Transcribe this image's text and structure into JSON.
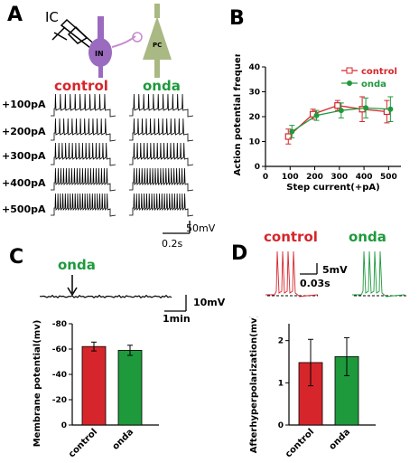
{
  "panels": {
    "A": {
      "letter": "A",
      "ic_label": "IC",
      "in_label": "IN",
      "pc_label": "PC",
      "control_label": "control",
      "onda_label": "onda",
      "steps": [
        "+100pA",
        "+200pA",
        "+300pA",
        "+400pA",
        "+500pA"
      ],
      "scale_v": "50mV",
      "scale_t": "0.2s"
    },
    "C": {
      "letter": "C",
      "onda_label": "onda",
      "scale_v": "10mV",
      "scale_t": "1min"
    },
    "D": {
      "letter": "D",
      "control_label": "control",
      "onda_label": "onda",
      "scale_v": "5mV",
      "scale_t": "0.03s"
    }
  },
  "colors": {
    "control": "#d6262b",
    "onda": "#1e9a3c",
    "interneuron": "#9b6bbf",
    "pyramidal": "#aab883"
  },
  "chart_data": [
    {
      "id": "B",
      "letter": "B",
      "type": "line",
      "xlabel": "Step current(+pA)",
      "ylabel": "Action potential frequency",
      "x": [
        100,
        200,
        300,
        400,
        500
      ],
      "xlim": [
        0,
        550
      ],
      "xticks": [
        0,
        100,
        200,
        300,
        400,
        500
      ],
      "ylim": [
        0,
        40
      ],
      "yticks": [
        0,
        10,
        20,
        30,
        40
      ],
      "legend_position": "top-right",
      "series": [
        {
          "name": "control",
          "values": [
            12,
            21,
            24.5,
            23,
            22
          ],
          "errors": [
            3,
            2,
            2,
            5,
            4.5
          ],
          "color": "#d6262b",
          "marker": "open-square"
        },
        {
          "name": "onda",
          "values": [
            14,
            20.5,
            22.5,
            23.5,
            23
          ],
          "errors": [
            2.5,
            2,
            3,
            4,
            5
          ],
          "color": "#1e9a3c",
          "marker": "filled-circle"
        }
      ]
    },
    {
      "id": "C",
      "type": "bar",
      "ylabel": "Membrane potential(mv)",
      "categories": [
        "control",
        "onda"
      ],
      "values": [
        -62,
        -59
      ],
      "errors": [
        3.5,
        4
      ],
      "colors": [
        "#d6262b",
        "#1e9a3c"
      ],
      "ylim": [
        0,
        -80
      ],
      "yticks": [
        0,
        -20,
        -40,
        -60,
        -80
      ]
    },
    {
      "id": "D",
      "type": "bar",
      "ylabel": "Afterhyperpolarization(mv)",
      "categories": [
        "control",
        "onda"
      ],
      "values": [
        1.48,
        1.62
      ],
      "errors": [
        0.55,
        0.45
      ],
      "colors": [
        "#d6262b",
        "#1e9a3c"
      ],
      "ylim": [
        0,
        2.4
      ],
      "yticks": [
        0,
        1,
        2
      ]
    }
  ]
}
